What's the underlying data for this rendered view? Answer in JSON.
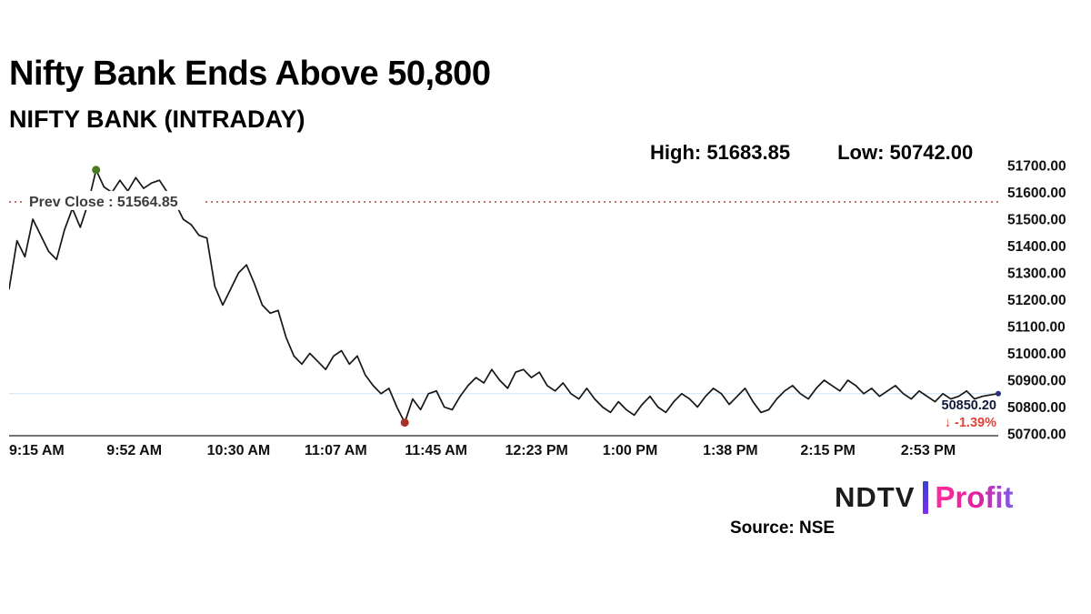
{
  "header": {
    "title": "Nifty Bank Ends Above 50,800",
    "subtitle": "NIFTY BANK (INTRADAY)",
    "high_label": "High: 51683.85",
    "low_label": "Low: 50742.00"
  },
  "chart_data": {
    "type": "line",
    "title": "NIFTY BANK (INTRADAY)",
    "xlabel": "",
    "ylabel": "",
    "x_start_min": 0,
    "x_step_min": 3,
    "x_end_min": 375,
    "x_unit": "minutes since 9:15 AM",
    "ylim": [
      50700,
      51700
    ],
    "grid": false,
    "line_color": "#161616",
    "values": [
      51240,
      51420,
      51360,
      51500,
      51440,
      51380,
      51350,
      51460,
      51540,
      51470,
      51560,
      51683.85,
      51620,
      51600,
      51645,
      51605,
      51655,
      51615,
      51635,
      51645,
      51600,
      51560,
      51500,
      51480,
      51440,
      51430,
      51250,
      51180,
      51240,
      51300,
      51330,
      51260,
      51180,
      51150,
      51160,
      51060,
      50990,
      50960,
      51000,
      50970,
      50940,
      50990,
      51010,
      50960,
      50990,
      50920,
      50880,
      50850,
      50870,
      50800,
      50742,
      50830,
      50790,
      50850,
      50860,
      50800,
      50790,
      50840,
      50880,
      50910,
      50890,
      50940,
      50900,
      50870,
      50930,
      50940,
      50910,
      50930,
      50880,
      50860,
      50890,
      50850,
      50830,
      50870,
      50830,
      50800,
      50780,
      50820,
      50790,
      50770,
      50810,
      50840,
      50800,
      50780,
      50820,
      50850,
      50830,
      50800,
      50840,
      50870,
      50850,
      50810,
      50840,
      50870,
      50820,
      50780,
      50790,
      50830,
      50860,
      50880,
      50850,
      50830,
      50870,
      50900,
      50880,
      50860,
      50900,
      50880,
      50850,
      50870,
      50840,
      50860,
      50880,
      50850,
      50830,
      50860,
      50840,
      50820,
      50850,
      50830,
      50840,
      50860,
      50830,
      50840,
      50845,
      50850.2
    ],
    "y_ticks": [
      "51700.00",
      "51600.00",
      "51500.00",
      "51400.00",
      "51300.00",
      "51200.00",
      "51100.00",
      "51000.00",
      "50900.00",
      "50800.00",
      "50700.00"
    ],
    "x_ticks": [
      {
        "label": "9:15 AM",
        "min": 0
      },
      {
        "label": "9:52 AM",
        "min": 37
      },
      {
        "label": "10:30 AM",
        "min": 75
      },
      {
        "label": "11:07 AM",
        "min": 112
      },
      {
        "label": "11:45 AM",
        "min": 150
      },
      {
        "label": "12:23 PM",
        "min": 188
      },
      {
        "label": "1:00 PM",
        "min": 225
      },
      {
        "label": "1:38 PM",
        "min": 263
      },
      {
        "label": "2:15 PM",
        "min": 300
      },
      {
        "label": "2:53 PM",
        "min": 338
      }
    ],
    "prev_close": {
      "label": "Prev Close : 51564.85",
      "value": 51564.85,
      "line_color": "#c0504d",
      "label_color": "#3d3d3d"
    },
    "high": {
      "value": 51683.85,
      "marker_color": "#4b7a21"
    },
    "low": {
      "value": 50742.0,
      "marker_color": "#a93226"
    },
    "last": {
      "price_label": "50850.20",
      "change_label": "↓ -1.39%",
      "value": 50850.2,
      "price_color": "#101a3c",
      "change_color": "#e04438",
      "marker_color": "#23357d",
      "faint_line_color": "#bcd6f0"
    }
  },
  "footer": {
    "brand_ndtv": "NDTV",
    "brand_profit": "Profit",
    "source": "Source: NSE"
  }
}
